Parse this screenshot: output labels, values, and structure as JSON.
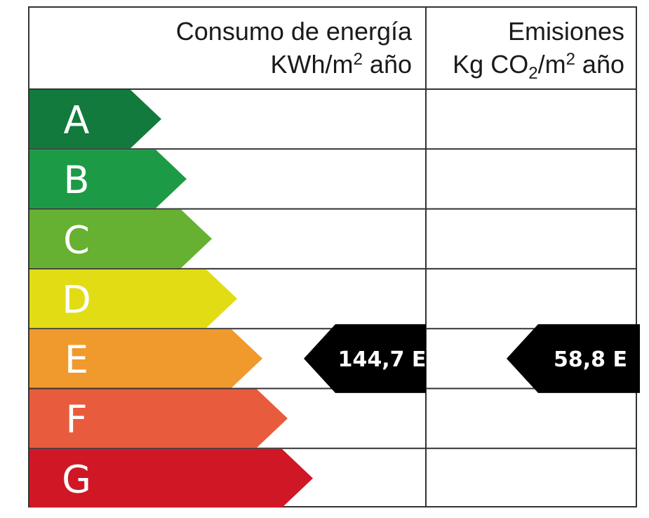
{
  "header": {
    "energy_title": "Consumo de energía",
    "energy_unit_main": "KWh/m",
    "energy_unit_sup": "2",
    "energy_unit_tail": " año",
    "emissions_title": "Emisiones",
    "emissions_unit_pre": "Kg CO",
    "emissions_unit_sub": "2",
    "emissions_unit_mid": "/m",
    "emissions_unit_sup": "2",
    "emissions_unit_tail": " año"
  },
  "chart_data": {
    "type": "table",
    "classes": [
      {
        "letter": "A",
        "color": "#127a3c"
      },
      {
        "letter": "B",
        "color": "#1d9a46"
      },
      {
        "letter": "C",
        "color": "#66b032"
      },
      {
        "letter": "D",
        "color": "#e2dc14"
      },
      {
        "letter": "E",
        "color": "#f0992d"
      },
      {
        "letter": "F",
        "color": "#e95b3d"
      },
      {
        "letter": "G",
        "color": "#cf1726"
      }
    ],
    "energy_rating": {
      "value_label": "144,7 E",
      "value": 144.7,
      "class": "E"
    },
    "emissions_rating": {
      "value_label": "58,8 E",
      "value": 58.8,
      "class": "E"
    },
    "indicator_color": "#000000"
  }
}
